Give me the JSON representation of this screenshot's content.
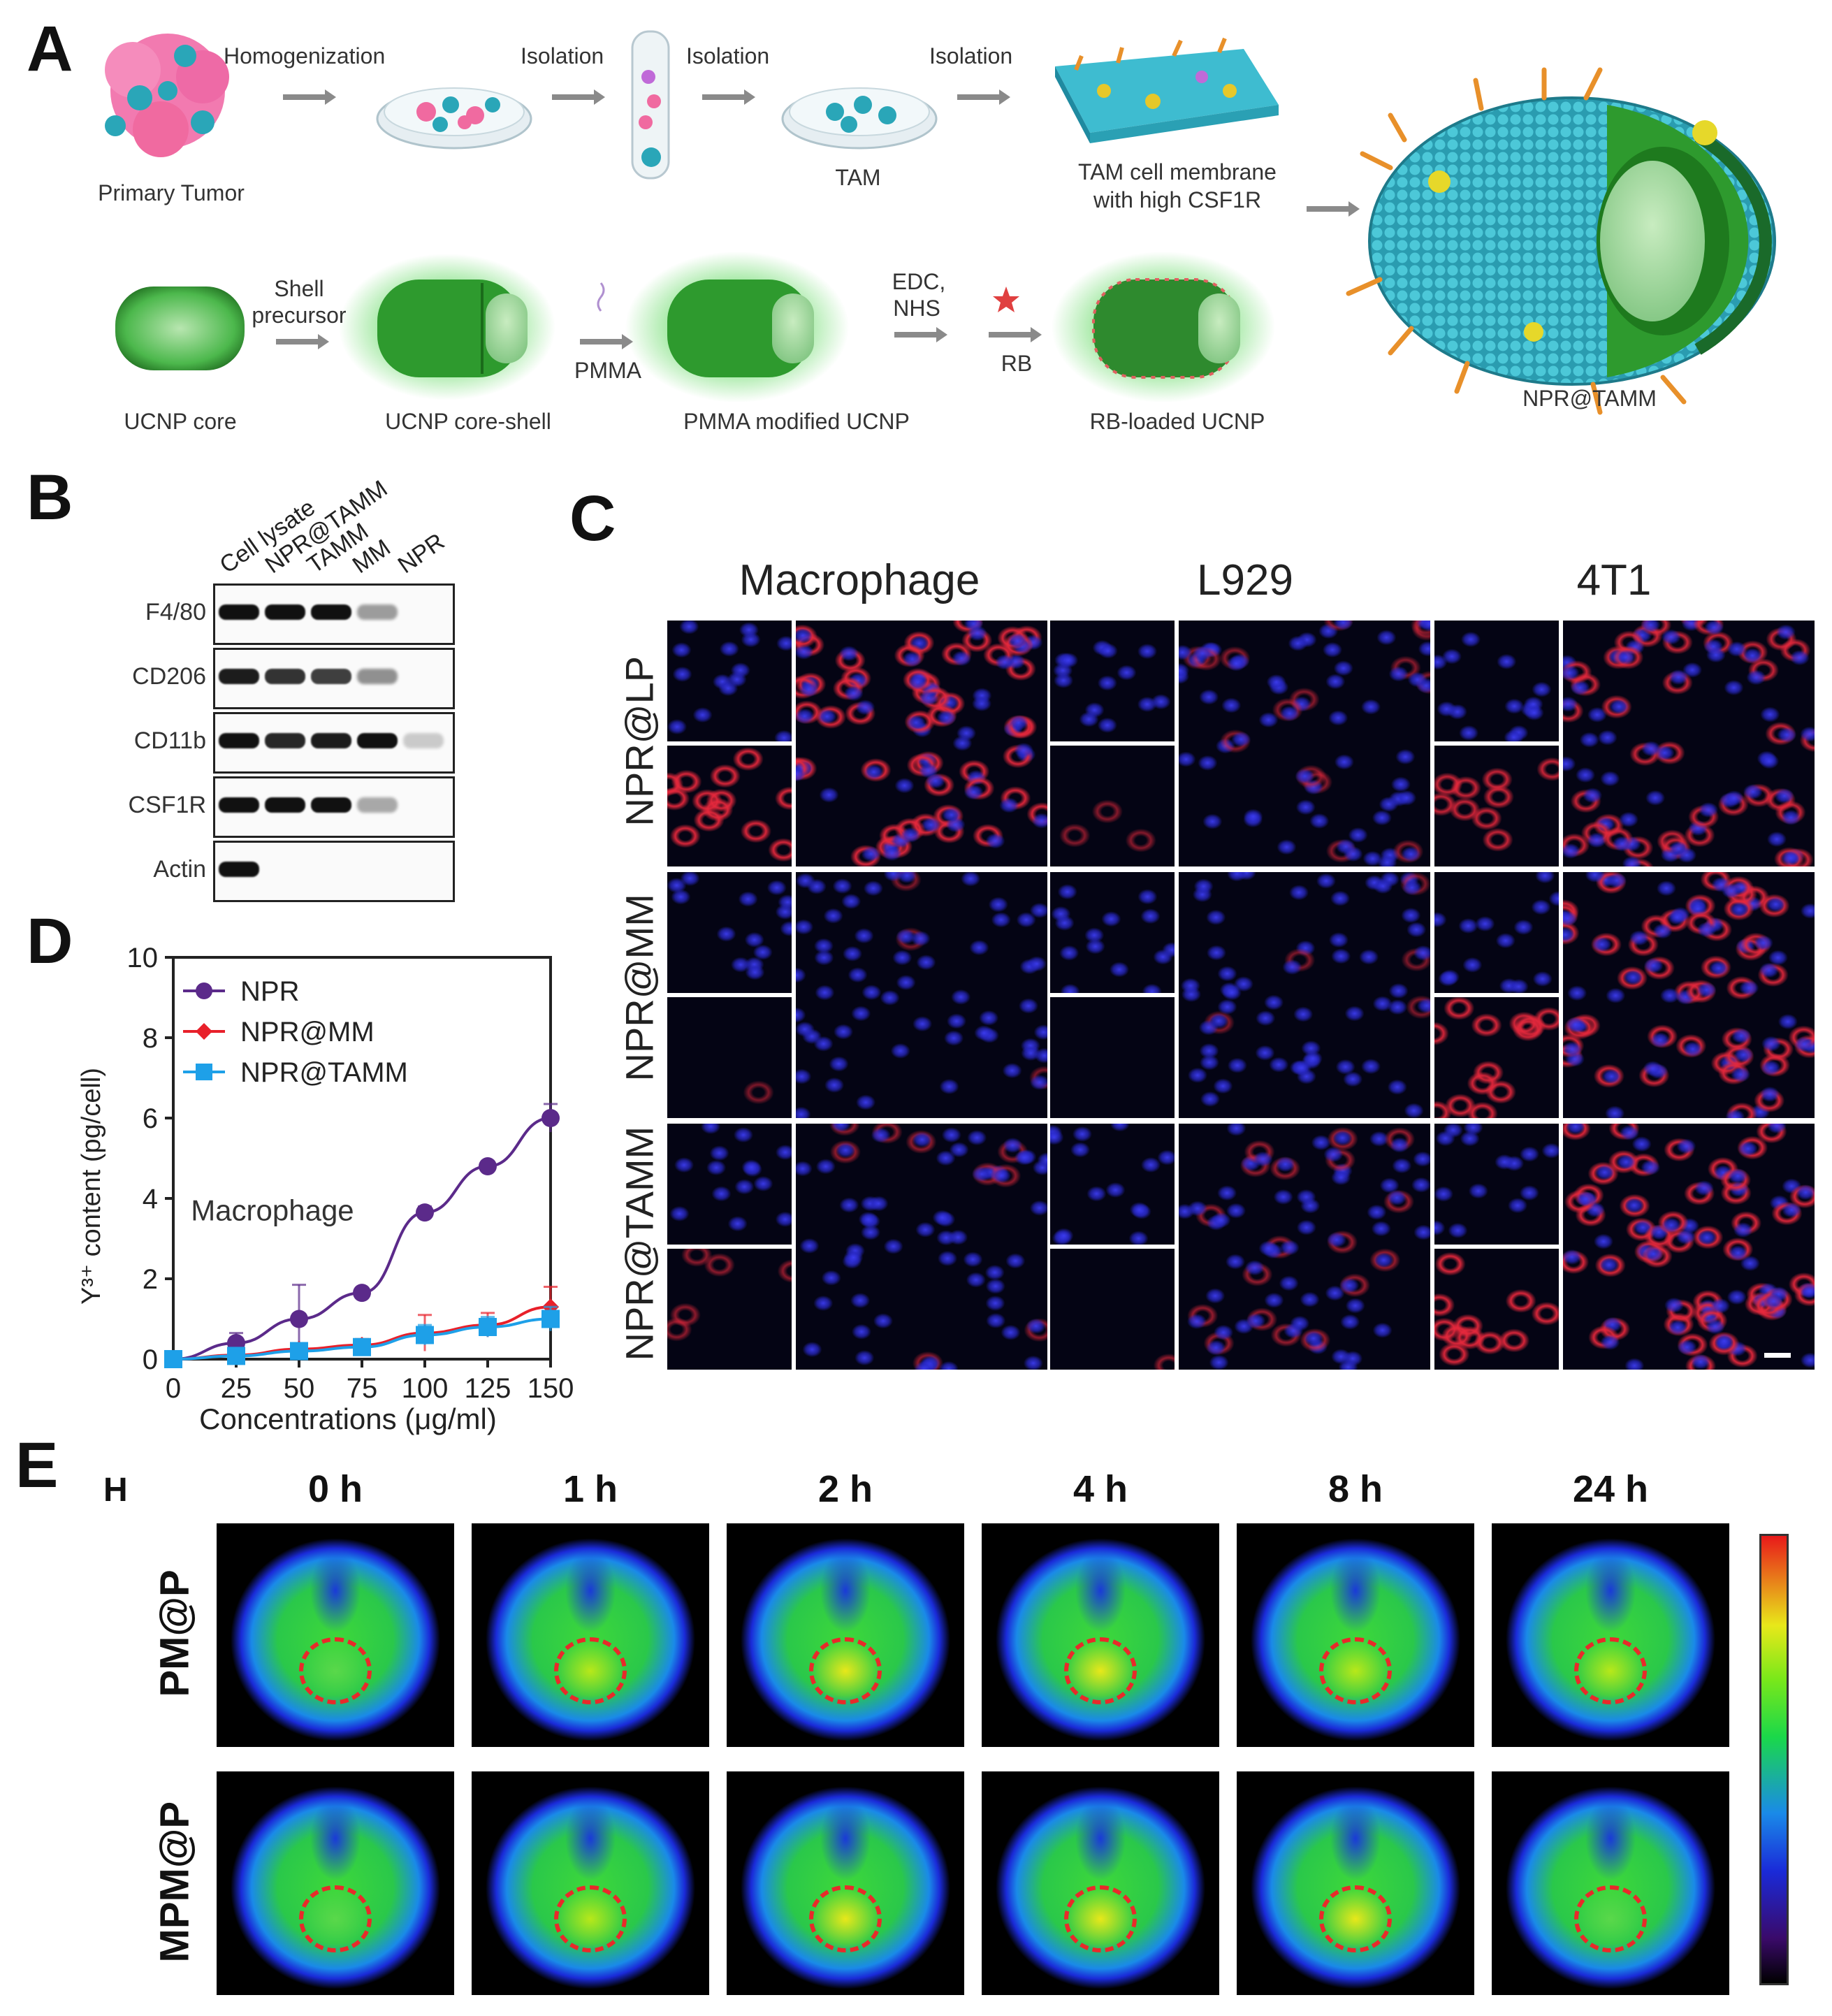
{
  "panels": {
    "a": "A",
    "b": "B",
    "c": "C",
    "d": "D",
    "e": "E"
  },
  "panel_a": {
    "top_labels": {
      "homogenization": "Homogenization",
      "isolation1": "Isolation",
      "isolation2": "Isolation",
      "isolation3": "Isolation",
      "primary_tumor": "Primary Tumor",
      "tam": "TAM",
      "membrane_line1": "TAM cell membrane",
      "membrane_line2": "with high CSF1R",
      "product": "NPR@TAMM"
    },
    "bottom_labels": {
      "shell_line1": "Shell",
      "shell_line2": "precursor",
      "pmma": "PMMA",
      "edc_line1": "EDC,",
      "edc_line2": "NHS",
      "rb": "RB",
      "core": "UCNP core",
      "core_shell": "UCNP core-shell",
      "pmma_modified": "PMMA modified UCNP",
      "rb_loaded": "RB-loaded UCNP"
    },
    "colors": {
      "membrane": "#36b6c8",
      "ucnp": "#2e9a2e",
      "tumor": "#f06aa0",
      "arrow": "#8a8a8a"
    }
  },
  "panel_b": {
    "lanes": [
      "Cell lysate",
      "NPR@TAMM",
      "TAMM",
      "MM",
      "NPR"
    ],
    "rows": [
      {
        "name": "F4/80",
        "intensities": [
          1,
          0.9,
          0.95,
          0.25,
          0
        ]
      },
      {
        "name": "CD206",
        "intensities": [
          0.8,
          0.7,
          0.65,
          0.3,
          0
        ]
      },
      {
        "name": "CD11b",
        "intensities": [
          0.85,
          0.75,
          0.8,
          0.85,
          0.05
        ]
      },
      {
        "name": "CSF1R",
        "intensities": [
          0.95,
          0.9,
          0.85,
          0.2,
          0
        ]
      },
      {
        "name": "Actin",
        "intensities": [
          1,
          0,
          0,
          0,
          0
        ]
      }
    ]
  },
  "panel_c": {
    "columns": [
      "Macrophage",
      "L929",
      "4T1"
    ],
    "rows": [
      "NPR@LP",
      "NPR@MM",
      "NPR@TAMM"
    ],
    "red_signal": [
      [
        0.85,
        0.15,
        0.7
      ],
      [
        0.05,
        0.05,
        0.8
      ],
      [
        0.2,
        0.25,
        0.85
      ]
    ],
    "colors": {
      "nucleus": "#2a2ae0",
      "membrane": "#e02a3a",
      "background": "#040414"
    }
  },
  "chart_data": {
    "type": "line",
    "x": [
      0,
      25,
      50,
      75,
      100,
      125,
      150
    ],
    "xlabel": "Concentrations (μg/ml)",
    "ylabel": "Y³⁺ content (pg/cell)",
    "ylim": [
      0,
      10
    ],
    "xlim": [
      0,
      150
    ],
    "yticks": [
      0,
      2,
      4,
      6,
      8,
      10
    ],
    "annotation": "Macrophage",
    "legend_position": "top-left",
    "series": [
      {
        "name": "NPR",
        "color": "#5b2a8a",
        "marker": "circle",
        "values": [
          0.0,
          0.4,
          1.0,
          1.65,
          3.65,
          4.8,
          6.0
        ],
        "errors": [
          0.05,
          0.25,
          0.85,
          0.1,
          0.15,
          0.1,
          0.35
        ]
      },
      {
        "name": "NPR@MM",
        "color": "#e8202a",
        "marker": "diamond",
        "values": [
          0.0,
          0.1,
          0.25,
          0.35,
          0.65,
          0.85,
          1.3
        ],
        "errors": [
          0.05,
          0.1,
          0.15,
          0.15,
          0.45,
          0.3,
          0.5
        ]
      },
      {
        "name": "NPR@TAMM",
        "color": "#1ea0e8",
        "marker": "square",
        "values": [
          0.0,
          0.08,
          0.2,
          0.3,
          0.6,
          0.8,
          1.0
        ],
        "errors": [
          0.05,
          0.08,
          0.1,
          0.1,
          0.25,
          0.25,
          0.3
        ]
      }
    ]
  },
  "panel_e": {
    "corner": "H",
    "times": [
      "0 h",
      "1 h",
      "2 h",
      "4 h",
      "8 h",
      "24 h"
    ],
    "rows": [
      "PM@P",
      "MPM@P"
    ],
    "hot_spot": [
      [
        0.2,
        0.45,
        0.6,
        0.7,
        0.55,
        0.4
      ],
      [
        0.25,
        0.5,
        0.75,
        0.9,
        0.65,
        0.35
      ]
    ],
    "colormap": [
      "#000000",
      "#3a0a6a",
      "#1a2ad8",
      "#1a8ae8",
      "#1ad84a",
      "#7ae81a",
      "#e8e81a",
      "#e8801a",
      "#e81a1a"
    ]
  }
}
